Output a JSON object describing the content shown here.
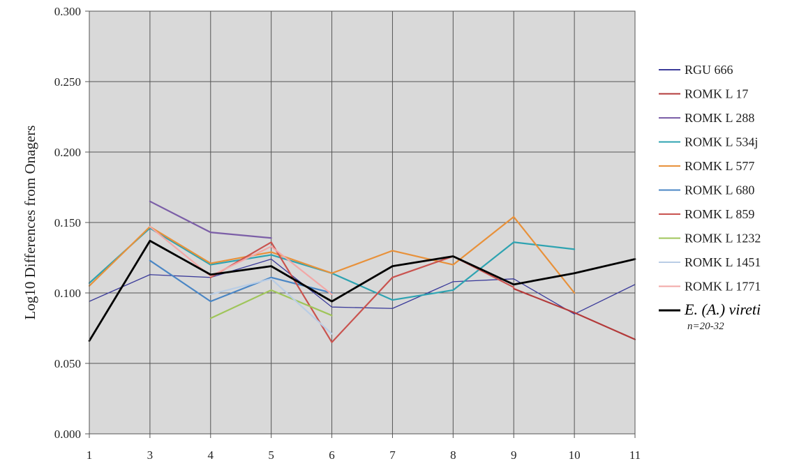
{
  "chart_data": {
    "type": "line",
    "ylabel": "Log10 Differences from Onagers",
    "xlabel": "",
    "categories": [
      "1",
      "3",
      "4",
      "5",
      "6",
      "7",
      "8",
      "9",
      "10",
      "11"
    ],
    "ylim": [
      0,
      0.3
    ],
    "yticks": [
      "0.000",
      "0.050",
      "0.100",
      "0.150",
      "0.200",
      "0.250",
      "0.300"
    ],
    "grid": true,
    "legend_position": "right",
    "legend_note": "n=20-32",
    "series": [
      {
        "name": "RGU 666",
        "color": "#3b3b9a",
        "width": 1.3,
        "values": [
          0.094,
          0.113,
          0.111,
          0.124,
          0.09,
          0.089,
          0.108,
          0.11,
          0.085,
          0.106
        ]
      },
      {
        "name": "ROMK L 17",
        "color": "#b33a3a",
        "width": 2.2,
        "values": [
          null,
          null,
          null,
          null,
          null,
          null,
          null,
          0.103,
          0.086,
          0.067
        ]
      },
      {
        "name": "ROMK L 288",
        "color": "#7b5ea7",
        "width": 2.2,
        "values": [
          null,
          0.165,
          0.143,
          0.139,
          null,
          null,
          null,
          null,
          null,
          null
        ]
      },
      {
        "name": "ROMK L 534j",
        "color": "#2ea3b1",
        "width": 2.2,
        "values": [
          0.107,
          0.146,
          0.12,
          0.127,
          0.114,
          0.095,
          0.102,
          0.136,
          0.131,
          null
        ]
      },
      {
        "name": "ROMK L 577",
        "color": "#e8913a",
        "width": 2.2,
        "values": [
          0.105,
          0.147,
          0.121,
          0.129,
          0.114,
          0.13,
          0.12,
          0.154,
          0.1,
          null
        ]
      },
      {
        "name": "ROMK L 680",
        "color": "#4a86c5",
        "width": 2.2,
        "values": [
          null,
          0.123,
          0.094,
          0.111,
          0.1,
          null,
          null,
          null,
          null,
          null
        ]
      },
      {
        "name": "ROMK L 859",
        "color": "#c9534f",
        "width": 2.2,
        "values": [
          null,
          null,
          0.111,
          0.136,
          0.065,
          0.111,
          0.126,
          0.104,
          null,
          null
        ]
      },
      {
        "name": "ROMK L 1232",
        "color": "#9fc55a",
        "width": 2.2,
        "values": [
          null,
          null,
          0.082,
          0.102,
          0.084,
          null,
          null,
          null,
          null,
          null
        ]
      },
      {
        "name": "ROMK L 1451",
        "color": "#b9cde5",
        "width": 2.2,
        "values": [
          null,
          null,
          0.099,
          0.11,
          0.071,
          null,
          null,
          null,
          null,
          null
        ]
      },
      {
        "name": "ROMK L 1771",
        "color": "#f2a7a6",
        "width": 2.2,
        "values": [
          null,
          0.147,
          0.112,
          0.133,
          0.099,
          null,
          null,
          null,
          null,
          null
        ]
      },
      {
        "name": "E. (A.) vireti",
        "color": "#000000",
        "width": 2.8,
        "emphasis": true,
        "values": [
          0.066,
          0.137,
          0.113,
          0.119,
          0.094,
          0.119,
          0.126,
          0.106,
          0.114,
          0.124
        ]
      }
    ]
  }
}
